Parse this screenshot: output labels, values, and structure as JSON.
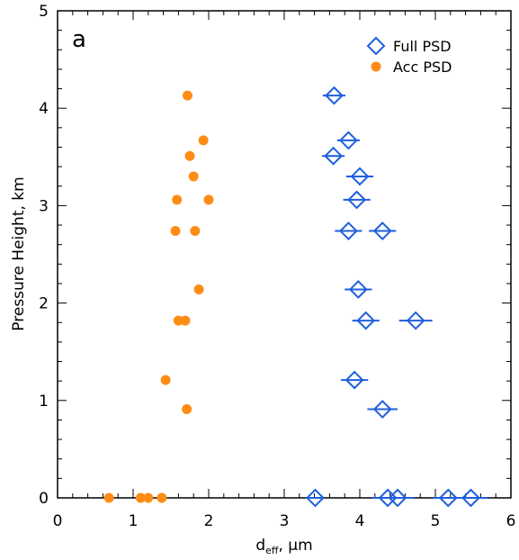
{
  "chart_data": {
    "type": "scatter",
    "panel_label": "a",
    "xlabel": "d",
    "xlabel_sub": "eff",
    "xlabel_unit": ", μm",
    "ylabel": "Pressure Height, km",
    "xlim": [
      0,
      6
    ],
    "ylim": [
      0,
      5
    ],
    "xticks": [
      "0",
      "1",
      "2",
      "3",
      "4",
      "5",
      "6"
    ],
    "yticks": [
      "0",
      "1",
      "2",
      "3",
      "4",
      "5"
    ],
    "legend_position": "top-right",
    "series": [
      {
        "name": "Full PSD",
        "marker": "diamond-open",
        "color": "#1f5fdc",
        "points": [
          {
            "x": 3.66,
            "y": 4.13,
            "xerr": 0.15
          },
          {
            "x": 3.85,
            "y": 3.67,
            "xerr": 0.15
          },
          {
            "x": 3.65,
            "y": 3.51,
            "xerr": 0.15
          },
          {
            "x": 4.0,
            "y": 3.3,
            "xerr": 0.18
          },
          {
            "x": 3.96,
            "y": 3.06,
            "xerr": 0.18
          },
          {
            "x": 3.85,
            "y": 2.74,
            "xerr": 0.18
          },
          {
            "x": 4.3,
            "y": 2.74,
            "xerr": 0.18
          },
          {
            "x": 3.98,
            "y": 2.14,
            "xerr": 0.18
          },
          {
            "x": 4.08,
            "y": 1.82,
            "xerr": 0.18
          },
          {
            "x": 4.74,
            "y": 1.82,
            "xerr": 0.22
          },
          {
            "x": 3.93,
            "y": 1.21,
            "xerr": 0.18
          },
          {
            "x": 4.3,
            "y": 0.91,
            "xerr": 0.2
          },
          {
            "x": 3.41,
            "y": 0.0,
            "xerr": 0.1
          },
          {
            "x": 4.37,
            "y": 0.0,
            "xerr": 0.2
          },
          {
            "x": 4.5,
            "y": 0.0,
            "xerr": 0.22
          },
          {
            "x": 5.17,
            "y": 0.0,
            "xerr": 0.2
          },
          {
            "x": 5.47,
            "y": 0.0,
            "xerr": 0.22
          }
        ]
      },
      {
        "name": "Acc PSD",
        "marker": "circle-filled",
        "color": "#ff8c14",
        "points": [
          {
            "x": 1.72,
            "y": 4.13,
            "xerr": 0.05
          },
          {
            "x": 1.93,
            "y": 3.67,
            "xerr": 0.05
          },
          {
            "x": 1.75,
            "y": 3.51,
            "xerr": 0.05
          },
          {
            "x": 1.8,
            "y": 3.3,
            "xerr": 0.05
          },
          {
            "x": 1.58,
            "y": 3.06,
            "xerr": 0.05
          },
          {
            "x": 2.0,
            "y": 3.06,
            "xerr": 0.06
          },
          {
            "x": 1.56,
            "y": 2.74,
            "xerr": 0.05
          },
          {
            "x": 1.82,
            "y": 2.74,
            "xerr": 0.05
          },
          {
            "x": 1.87,
            "y": 2.14,
            "xerr": 0.05
          },
          {
            "x": 1.6,
            "y": 1.82,
            "xerr": 0.05
          },
          {
            "x": 1.69,
            "y": 1.82,
            "xerr": 0.05
          },
          {
            "x": 1.43,
            "y": 1.21,
            "xerr": 0.0
          },
          {
            "x": 1.71,
            "y": 0.91,
            "xerr": 0.05
          },
          {
            "x": 0.68,
            "y": 0.0,
            "xerr": 0.0
          },
          {
            "x": 1.1,
            "y": 0.0,
            "xerr": 0.0
          },
          {
            "x": 1.2,
            "y": 0.0,
            "xerr": 0.0
          },
          {
            "x": 1.38,
            "y": 0.0,
            "xerr": 0.0
          }
        ]
      }
    ]
  }
}
